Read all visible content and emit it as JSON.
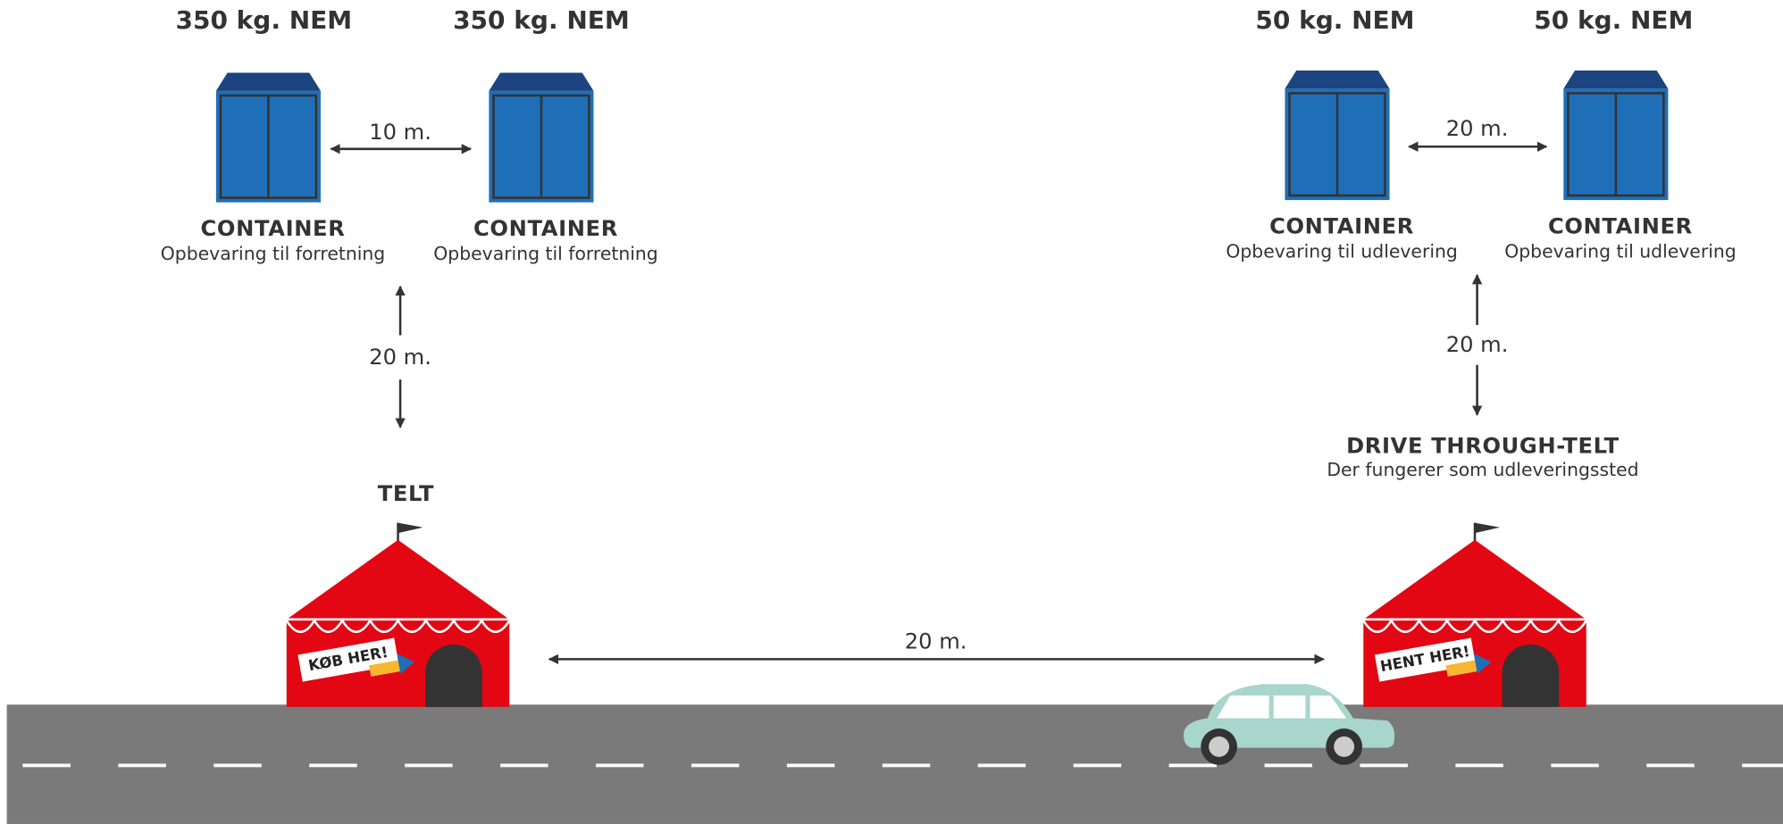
{
  "containers": [
    {
      "weight": "350 kg. NEM",
      "label": "CONTAINER",
      "description": "Opbevaring til forretning"
    },
    {
      "weight": "350 kg. NEM",
      "label": "CONTAINER",
      "description": "Opbevaring til forretning"
    },
    {
      "weight": "50 kg. NEM",
      "label": "CONTAINER",
      "description": "Opbevaring til udlevering"
    },
    {
      "weight": "50 kg. NEM",
      "label": "CONTAINER",
      "description": "Opbevaring til udlevering"
    }
  ],
  "distances": {
    "left_containers": "10 m.",
    "left_vertical": "20 m.",
    "right_containers": "20 m.",
    "right_vertical": "20 m.",
    "between_tents": "20 m."
  },
  "tents": [
    {
      "label": "TELT",
      "sign": "KØB HER!"
    },
    {
      "label": "DRIVE THROUGH-TELT",
      "description": "Der fungerer som udleveringssted",
      "sign": "HENT HER!"
    }
  ]
}
